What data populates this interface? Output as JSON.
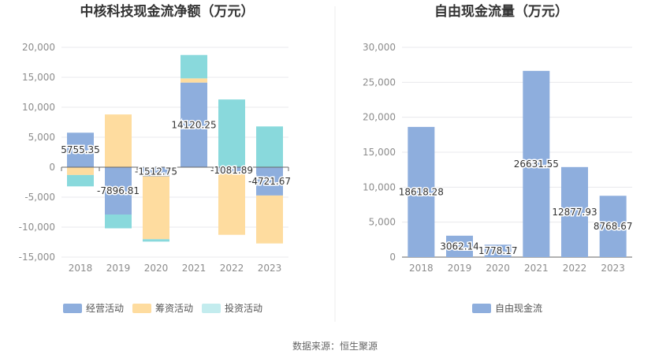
{
  "source": "数据来源：恒生聚源",
  "colors": {
    "operating": "#8eaedd",
    "financing": "#fedc9f",
    "investing": "#89d9dc",
    "investing_legend": "#c3ecee",
    "free_cash_flow": "#8eaedd",
    "grid": "#e8e8ec",
    "axis_text": "#8c8c8c",
    "title": "#333333"
  },
  "chart_data": [
    {
      "type": "bar",
      "stacked": true,
      "title": "中核科技现金流净额（万元）",
      "xlabel": "",
      "ylabel": "",
      "categories": [
        "2018",
        "2019",
        "2020",
        "2021",
        "2022",
        "2023"
      ],
      "ylim": [
        -15000,
        20000
      ],
      "yticks": [
        20000,
        15000,
        10000,
        5000,
        0,
        -5000,
        -10000,
        -15000
      ],
      "ytick_labels": [
        "20,000",
        "15,000",
        "10,000",
        "5,000",
        "0",
        "-5,000",
        "-10,000",
        "-15,000"
      ],
      "grid": true,
      "legend_position": "bottom",
      "series": [
        {
          "name": "经营活动",
          "values": [
            5755.35,
            -7896.81,
            -1512.75,
            14120.25,
            -1081.89,
            -4721.67
          ],
          "labels": [
            "5755.35",
            "-7896.81",
            "-1512.75",
            "14120.25",
            "-1081.89",
            "-4721.67"
          ]
        },
        {
          "name": "筹资活动",
          "values": [
            -1300,
            8800,
            -10500,
            700,
            -10200,
            -8000
          ]
        },
        {
          "name": "投资活动",
          "values": [
            -1900,
            -2300,
            -400,
            3900,
            11300,
            6800
          ]
        }
      ]
    },
    {
      "type": "bar",
      "title": "自由现金流量（万元）",
      "xlabel": "",
      "ylabel": "",
      "categories": [
        "2018",
        "2019",
        "2020",
        "2021",
        "2022",
        "2023"
      ],
      "ylim": [
        0,
        30000
      ],
      "yticks": [
        30000,
        25000,
        20000,
        15000,
        10000,
        5000,
        0
      ],
      "ytick_labels": [
        "30,000",
        "25,000",
        "20,000",
        "15,000",
        "10,000",
        "5,000",
        "0"
      ],
      "grid": true,
      "legend_position": "bottom",
      "series": [
        {
          "name": "自由现金流",
          "values": [
            18618.28,
            3062.14,
            1778.17,
            26631.55,
            12877.93,
            8768.67
          ],
          "labels": [
            "18618.28",
            "3062.14",
            "1778.17",
            "26631.55",
            "12877.93",
            "8768.67"
          ]
        }
      ]
    }
  ]
}
